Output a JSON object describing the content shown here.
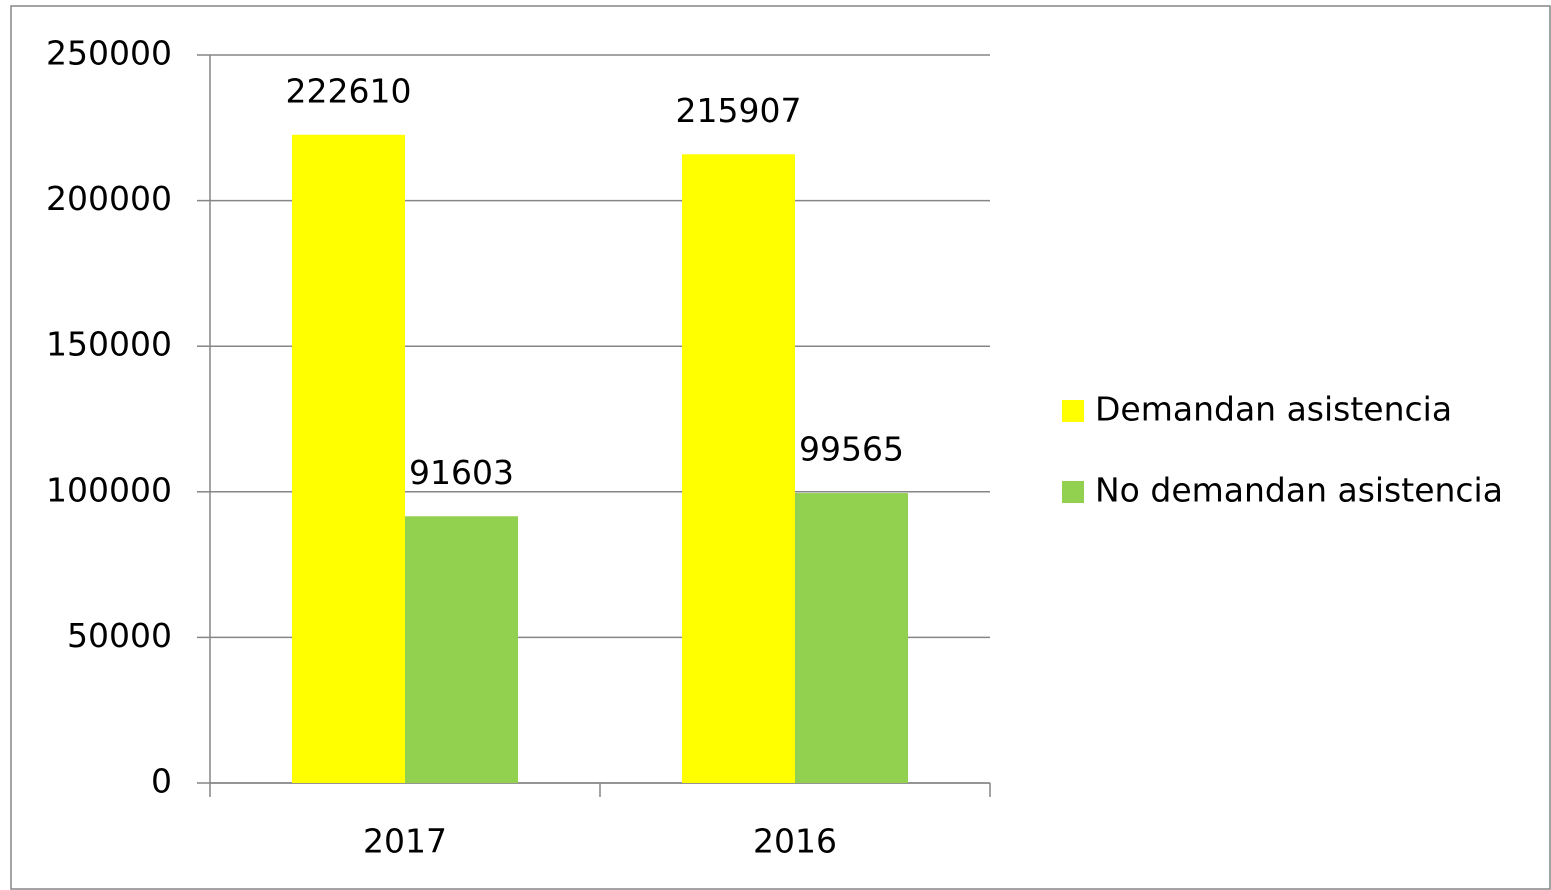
{
  "chart_data": {
    "type": "bar",
    "categories": [
      "2017",
      "2016"
    ],
    "series": [
      {
        "name": "Demandan asistencia",
        "color": "#ffff00",
        "values": [
          222610,
          215907
        ]
      },
      {
        "name": "No demandan asistencia",
        "color": "#92d050",
        "values": [
          91603,
          99565
        ]
      }
    ],
    "ylim": [
      0,
      250000
    ],
    "yticks": [
      0,
      50000,
      100000,
      150000,
      200000,
      250000
    ],
    "grid": true,
    "legend": "right",
    "data_labels": true
  }
}
